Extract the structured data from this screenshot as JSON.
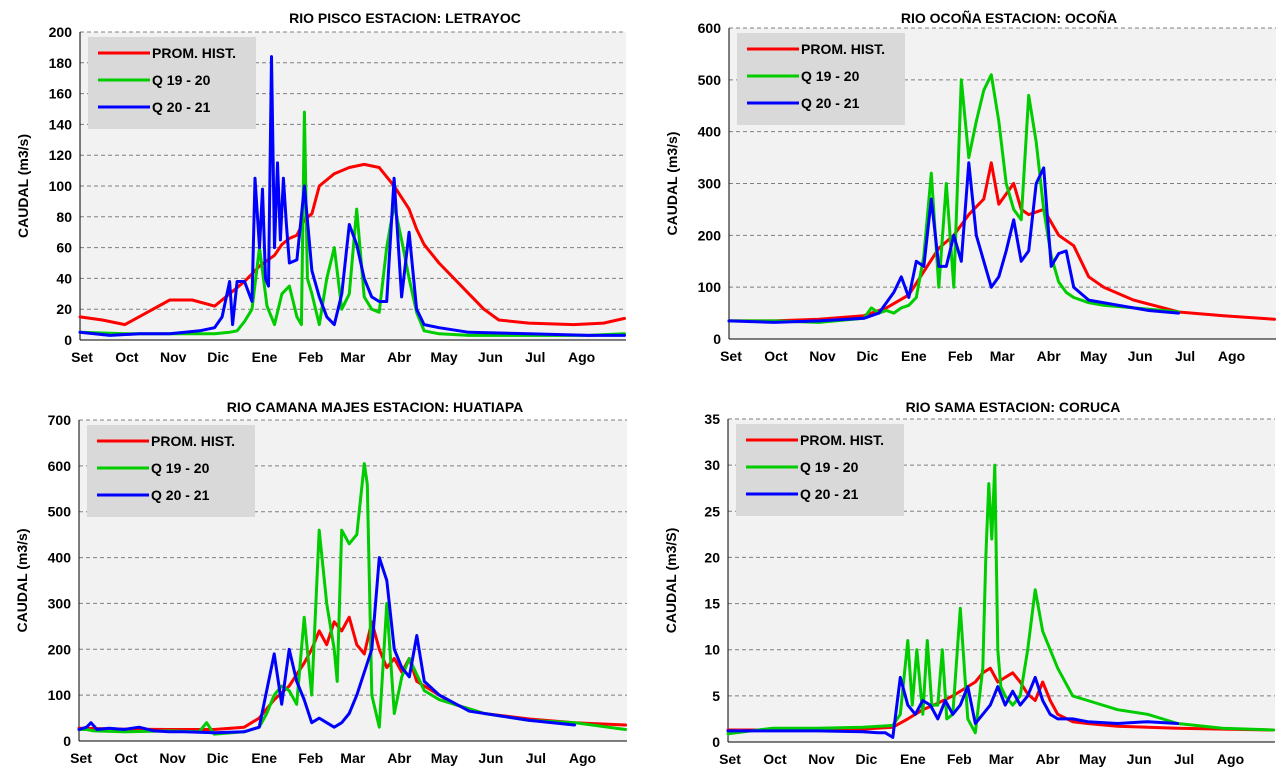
{
  "months": [
    "Set",
    "Oct",
    "Nov",
    "Dic",
    "Ene",
    "Feb",
    "Mar",
    "Abr",
    "May",
    "Jun",
    "Jul",
    "Ago"
  ],
  "colors": {
    "hist": "#ff0000",
    "q1920": "#00cc00",
    "q2021": "#0000ff",
    "plot_bg": "#f2f2f2",
    "legend_bg": "#d9d9d9"
  },
  "chart_data": [
    {
      "type": "line",
      "title": "RIO PISCO ESTACION:  LETRAYOC",
      "ylabel": "CAUDAL (m3/s)",
      "ylim": [
        0,
        200
      ],
      "yticks": [
        0,
        20,
        40,
        60,
        80,
        100,
        120,
        140,
        160,
        180,
        200
      ],
      "xlabel": "",
      "x_unit": "day index from 1 Set",
      "grid": true,
      "legend": "top-left",
      "series": [
        {
          "name": "PROM. HIST.",
          "color": "#ff0000",
          "x": [
            0,
            15,
            30,
            45,
            60,
            75,
            90,
            100,
            110,
            120,
            130,
            135,
            140,
            145,
            150,
            155,
            160,
            170,
            180,
            190,
            200,
            210,
            220,
            225,
            230,
            240,
            250,
            260,
            270,
            280,
            300,
            330,
            350,
            364
          ],
          "y": [
            15,
            13,
            10,
            18,
            26,
            26,
            22,
            30,
            38,
            48,
            55,
            62,
            66,
            68,
            78,
            82,
            100,
            108,
            112,
            114,
            112,
            100,
            85,
            72,
            62,
            50,
            40,
            30,
            20,
            13,
            11,
            10,
            11,
            14
          ]
        },
        {
          "name": "Q 19 - 20",
          "color": "#00cc00",
          "x": [
            0,
            30,
            60,
            90,
            100,
            105,
            110,
            115,
            120,
            125,
            130,
            135,
            140,
            145,
            148,
            150,
            152,
            155,
            160,
            165,
            170,
            175,
            180,
            185,
            190,
            195,
            200,
            205,
            210,
            215,
            220,
            225,
            230,
            235,
            240,
            260,
            300,
            340,
            364
          ],
          "y": [
            5,
            4,
            4,
            4,
            5,
            6,
            12,
            20,
            60,
            22,
            10,
            30,
            35,
            15,
            10,
            148,
            40,
            30,
            10,
            40,
            60,
            20,
            30,
            85,
            28,
            20,
            18,
            60,
            88,
            65,
            40,
            18,
            6,
            5,
            4,
            3,
            3,
            3,
            4
          ]
        },
        {
          "name": "Q 20 - 21",
          "color": "#0000ff",
          "x": [
            0,
            20,
            40,
            60,
            80,
            90,
            95,
            100,
            102,
            105,
            110,
            115,
            117,
            120,
            122,
            124,
            126,
            128,
            130,
            132,
            134,
            136,
            138,
            140,
            145,
            150,
            155,
            160,
            165,
            170,
            175,
            180,
            185,
            190,
            195,
            200,
            205,
            210,
            215,
            220,
            225,
            230,
            240,
            260,
            300,
            340,
            364
          ],
          "y": [
            5,
            3,
            4,
            4,
            6,
            8,
            15,
            38,
            10,
            38,
            38,
            25,
            105,
            60,
            98,
            40,
            35,
            184,
            60,
            115,
            65,
            105,
            75,
            50,
            52,
            100,
            45,
            28,
            15,
            10,
            30,
            75,
            62,
            40,
            28,
            25,
            25,
            105,
            28,
            70,
            20,
            10,
            8,
            5,
            4,
            3,
            3
          ]
        }
      ]
    },
    {
      "type": "line",
      "title": "RIO OCOÑA ESTACION:  OCOÑA",
      "ylabel": "CAUDAL (m3/s)",
      "ylim": [
        0,
        600
      ],
      "yticks": [
        0,
        100,
        200,
        300,
        400,
        500,
        600
      ],
      "xlabel": "",
      "x_unit": "day index from 1 Set",
      "grid": true,
      "legend": "top-left",
      "series": [
        {
          "name": "PROM. HIST.",
          "color": "#ff0000",
          "x": [
            0,
            30,
            60,
            90,
            105,
            120,
            130,
            140,
            150,
            160,
            170,
            175,
            180,
            190,
            195,
            200,
            210,
            220,
            230,
            240,
            250,
            270,
            290,
            300,
            330,
            364
          ],
          "y": [
            35,
            35,
            38,
            45,
            60,
            85,
            130,
            175,
            200,
            240,
            270,
            340,
            260,
            300,
            250,
            240,
            250,
            200,
            180,
            120,
            100,
            75,
            60,
            52,
            45,
            38
          ]
        },
        {
          "name": "Q 19 - 20",
          "color": "#00cc00",
          "x": [
            0,
            30,
            60,
            90,
            95,
            100,
            105,
            110,
            115,
            120,
            125,
            130,
            135,
            140,
            145,
            150,
            155,
            160,
            165,
            170,
            175,
            180,
            185,
            190,
            195,
            200,
            205,
            210,
            215,
            220,
            225,
            230,
            240,
            250,
            270,
            290,
            300
          ],
          "y": [
            35,
            35,
            32,
            40,
            60,
            50,
            55,
            50,
            60,
            65,
            80,
            160,
            320,
            100,
            300,
            100,
            500,
            350,
            420,
            480,
            510,
            420,
            300,
            250,
            230,
            470,
            380,
            250,
            160,
            110,
            90,
            80,
            70,
            65,
            60,
            55,
            52
          ]
        },
        {
          "name": "Q 20 - 21",
          "color": "#0000ff",
          "x": [
            0,
            30,
            60,
            90,
            100,
            110,
            115,
            120,
            125,
            130,
            135,
            140,
            145,
            150,
            155,
            160,
            165,
            170,
            175,
            180,
            185,
            190,
            195,
            200,
            205,
            210,
            215,
            220,
            225,
            230,
            240,
            260,
            280,
            300
          ],
          "y": [
            35,
            32,
            35,
            40,
            50,
            90,
            120,
            80,
            150,
            140,
            270,
            140,
            140,
            200,
            150,
            340,
            200,
            150,
            100,
            120,
            170,
            230,
            150,
            170,
            300,
            330,
            140,
            165,
            170,
            100,
            75,
            65,
            55,
            50
          ]
        }
      ]
    },
    {
      "type": "line",
      "title": "RIO CAMANA MAJES ESTACION:  HUATIAPA",
      "ylabel": "CAUDAL (m3/s)",
      "ylim": [
        0,
        700
      ],
      "yticks": [
        0,
        100,
        200,
        300,
        400,
        500,
        600,
        700
      ],
      "xlabel": "",
      "x_unit": "day index from 1 Set",
      "grid": true,
      "legend": "top-left",
      "series": [
        {
          "name": "PROM. HIST.",
          "color": "#ff0000",
          "x": [
            0,
            30,
            60,
            90,
            110,
            120,
            130,
            140,
            150,
            155,
            160,
            165,
            170,
            175,
            180,
            185,
            190,
            195,
            200,
            205,
            210,
            215,
            220,
            225,
            230,
            240,
            250,
            270,
            300,
            330,
            364
          ],
          "y": [
            28,
            26,
            25,
            25,
            30,
            50,
            90,
            120,
            170,
            200,
            240,
            210,
            260,
            240,
            270,
            210,
            190,
            260,
            200,
            160,
            180,
            150,
            180,
            130,
            120,
            100,
            80,
            60,
            48,
            40,
            35
          ]
        },
        {
          "name": "Q 19 - 20",
          "color": "#00cc00",
          "x": [
            0,
            5,
            10,
            30,
            60,
            80,
            85,
            90,
            110,
            120,
            125,
            130,
            135,
            140,
            145,
            150,
            155,
            160,
            165,
            170,
            172,
            175,
            180,
            185,
            190,
            192,
            195,
            200,
            205,
            210,
            215,
            220,
            230,
            240,
            270,
            300,
            330,
            364
          ],
          "y": [
            25,
            25,
            22,
            20,
            22,
            20,
            40,
            15,
            20,
            30,
            60,
            100,
            120,
            110,
            80,
            270,
            100,
            460,
            300,
            200,
            130,
            460,
            430,
            450,
            605,
            560,
            100,
            30,
            300,
            60,
            140,
            180,
            110,
            90,
            60,
            45,
            40,
            25
          ]
        },
        {
          "name": "Q 20 - 21",
          "color": "#0000ff",
          "x": [
            0,
            5,
            8,
            12,
            20,
            30,
            40,
            50,
            60,
            70,
            90,
            110,
            120,
            125,
            130,
            135,
            140,
            145,
            150,
            155,
            160,
            165,
            170,
            175,
            180,
            185,
            190,
            195,
            200,
            205,
            210,
            215,
            220,
            225,
            230,
            240,
            260,
            300,
            330
          ],
          "y": [
            25,
            30,
            40,
            25,
            28,
            25,
            30,
            22,
            20,
            20,
            18,
            20,
            30,
            110,
            190,
            80,
            200,
            130,
            90,
            40,
            50,
            40,
            30,
            40,
            60,
            100,
            150,
            200,
            400,
            350,
            200,
            160,
            140,
            230,
            130,
            100,
            65,
            45,
            35
          ]
        }
      ]
    },
    {
      "type": "line",
      "title": "RIO SAMA ESTACION:  CORUCA",
      "ylabel": "CAUDAL  (m3/S)",
      "ylim": [
        0,
        35
      ],
      "yticks": [
        0,
        5,
        10,
        15,
        20,
        25,
        30,
        35
      ],
      "xlabel": "",
      "x_unit": "day index from 1 Set",
      "grid": true,
      "legend": "top-left",
      "series": [
        {
          "name": "PROM. HIST.",
          "color": "#ff0000",
          "x": [
            0,
            30,
            60,
            90,
            110,
            120,
            130,
            140,
            150,
            160,
            165,
            170,
            175,
            180,
            185,
            190,
            195,
            200,
            205,
            210,
            215,
            220,
            230,
            240,
            260,
            280,
            300,
            330,
            364
          ],
          "y": [
            1.3,
            1.3,
            1.3,
            1.4,
            1.6,
            2.5,
            3.5,
            4.2,
            5,
            6,
            6.5,
            7.5,
            8,
            6.5,
            7,
            7.5,
            6.5,
            5.2,
            4.5,
            6.5,
            4.5,
            3,
            2.2,
            2,
            1.7,
            1.6,
            1.5,
            1.4,
            1.3
          ]
        },
        {
          "name": "Q 19 - 20",
          "color": "#00cc00",
          "x": [
            0,
            30,
            60,
            90,
            110,
            115,
            120,
            123,
            126,
            130,
            133,
            136,
            140,
            143,
            146,
            150,
            155,
            160,
            165,
            170,
            172,
            174,
            176,
            178,
            180,
            182,
            185,
            190,
            195,
            200,
            205,
            210,
            220,
            230,
            240,
            260,
            280,
            300,
            330,
            364
          ],
          "y": [
            0.9,
            1.5,
            1.5,
            1.6,
            1.8,
            3,
            11,
            4,
            10,
            3,
            11,
            4,
            4,
            10,
            2.5,
            3,
            14.5,
            2.5,
            1,
            8,
            20,
            28,
            22,
            30,
            10,
            6,
            5,
            4,
            5,
            10,
            16.5,
            12,
            8,
            5,
            4.5,
            3.5,
            3,
            2,
            1.5,
            1.3
          ]
        },
        {
          "name": "Q 20 - 21",
          "color": "#0000ff",
          "x": [
            0,
            30,
            60,
            90,
            100,
            105,
            110,
            115,
            120,
            125,
            130,
            135,
            140,
            145,
            150,
            155,
            160,
            165,
            170,
            175,
            180,
            185,
            190,
            195,
            200,
            205,
            210,
            215,
            220,
            230,
            240,
            260,
            280,
            300
          ],
          "y": [
            1.2,
            1.2,
            1.2,
            1.1,
            1,
            1,
            0.5,
            7,
            4,
            3,
            4.5,
            4,
            2.5,
            4.5,
            3,
            4,
            6,
            2,
            3,
            4,
            6,
            4,
            5.5,
            4,
            5,
            7,
            4.5,
            3,
            2.5,
            2.5,
            2.2,
            2,
            2.2,
            2
          ]
        }
      ]
    }
  ]
}
